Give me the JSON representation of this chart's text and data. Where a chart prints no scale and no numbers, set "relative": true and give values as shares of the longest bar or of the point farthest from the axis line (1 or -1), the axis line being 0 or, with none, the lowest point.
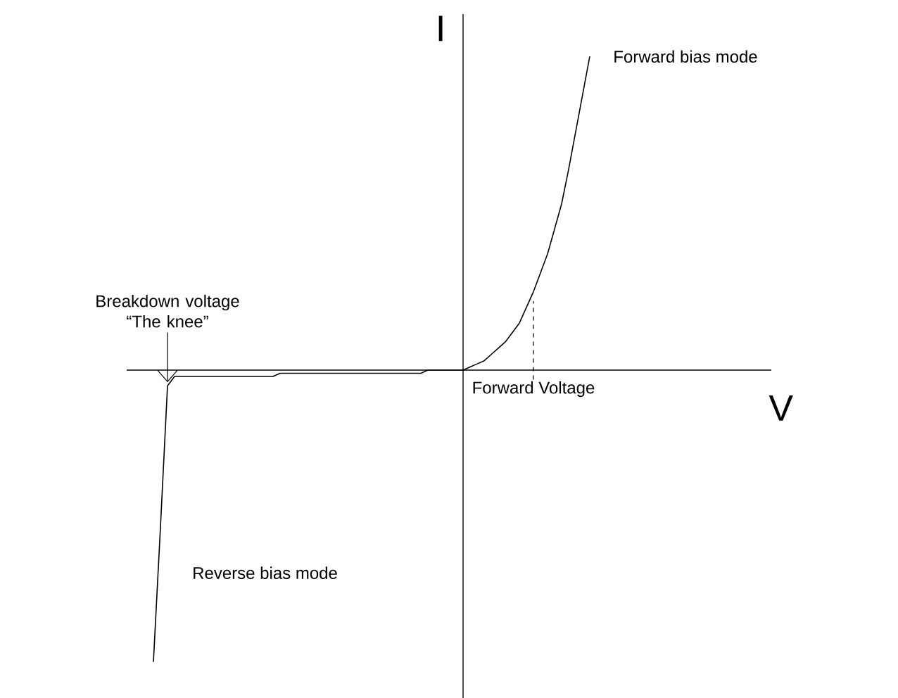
{
  "chart_data": {
    "type": "line",
    "relative": true,
    "xlabel": "V",
    "ylabel": "I",
    "color": "#000000",
    "line_style": "solid",
    "marker": "none",
    "categories": [
      null,
      null,
      null,
      null,
      null,
      null,
      null,
      null,
      null,
      null,
      null,
      null,
      null,
      null,
      null,
      null,
      null,
      null,
      null,
      null,
      null,
      null,
      null,
      null,
      null,
      null,
      null,
      null,
      null,
      null,
      null,
      null,
      null,
      null,
      null,
      null,
      null,
      null,
      null,
      null,
      null,
      null,
      null,
      null,
      null,
      null,
      null,
      null,
      null,
      null,
      null,
      null,
      null,
      null,
      null,
      null,
      null,
      null,
      null,
      null,
      null,
      null,
      null
    ],
    "values": [
      -0.93,
      -0.5,
      -0.05,
      -0.02,
      -0.02,
      -0.02,
      -0.02,
      -0.02,
      -0.02,
      -0.02,
      -0.02,
      -0.02,
      -0.02,
      -0.02,
      -0.02,
      -0.02,
      -0.02,
      -0.02,
      -0.01,
      -0.01,
      -0.01,
      -0.01,
      -0.01,
      -0.01,
      -0.01,
      -0.01,
      -0.01,
      -0.01,
      -0.01,
      -0.01,
      -0.01,
      -0.01,
      -0.01,
      -0.01,
      -0.01,
      -0.01,
      -0.01,
      -0.01,
      -0.01,
      0,
      0,
      0,
      0,
      0,
      0,
      0.01,
      0.02,
      0.03,
      0.05,
      0.07,
      0.09,
      0.12,
      0.15,
      0.2,
      0.25,
      0.31,
      0.37,
      0.45,
      0.53,
      0.64,
      0.76,
      0.88,
      1.0
    ],
    "annotations": [
      {
        "text": "Breakdown voltage “The knee”",
        "y": -0.05
      },
      {
        "text": "Forward Voltage",
        "y": 0.22
      },
      "Forward bias mode",
      "Reverse bias mode"
    ]
  }
}
